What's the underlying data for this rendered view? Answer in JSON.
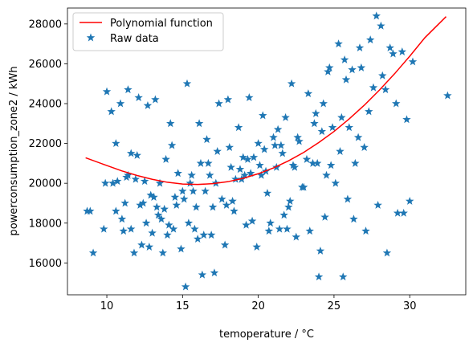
{
  "chart_data": {
    "type": "scatter",
    "xlabel": "temoperature / °C",
    "ylabel": "powerconsumption_zone2 / kWh",
    "xlim": [
      7.4,
      33.7
    ],
    "ylim": [
      14400,
      28800
    ],
    "xticks": [
      10,
      15,
      20,
      25,
      30
    ],
    "yticks": [
      16000,
      18000,
      20000,
      22000,
      24000,
      26000,
      28000
    ],
    "grid": false,
    "legend_position": "top-left",
    "colors": {
      "scatter": "#1f77b4",
      "line": "#ff0000"
    },
    "series": [
      {
        "name": "Polynomial function",
        "kind": "line",
        "x": [
          8.6,
          10,
          11,
          12,
          13,
          14,
          15,
          16,
          17,
          18,
          19,
          20,
          21,
          22,
          23,
          24,
          25,
          26,
          27,
          28,
          29,
          30,
          31,
          32.4
        ],
        "y": [
          21280,
          20890,
          20620,
          20390,
          20200,
          20050,
          19960,
          19940,
          19980,
          20080,
          20250,
          20480,
          20770,
          21130,
          21550,
          22050,
          22600,
          23230,
          23920,
          24680,
          25500,
          26380,
          27310,
          28370
        ]
      },
      {
        "name": "Raw data",
        "kind": "scatter",
        "x": [
          8.7,
          8.9,
          9.1,
          9.8,
          9.9,
          10.0,
          10.3,
          10.6,
          10.6,
          10.7,
          10.9,
          11.1,
          11.2,
          11.4,
          11.4,
          11.6,
          11.6,
          11.8,
          11.9,
          12.1,
          12.2,
          12.3,
          12.5,
          12.7,
          12.9,
          13.0,
          13.2,
          13.3,
          13.5,
          13.7,
          13.9,
          14.1,
          14.2,
          14.5,
          14.9,
          15.2,
          15.3,
          15.4,
          15.6,
          15.8,
          16.1,
          16.3,
          16.5,
          16.7,
          16.9,
          17.1,
          17.4,
          17.6,
          17.8,
          18.0,
          18.2,
          18.4,
          18.7,
          18.9,
          19.2,
          19.4,
          19.7,
          19.9,
          20.1,
          20.3,
          20.6,
          20.8,
          21.0,
          21.2,
          21.4,
          21.6,
          21.8,
          22.1,
          22.3,
          22.5,
          22.7,
          22.9,
          23.2,
          23.4,
          23.7,
          23.9,
          24.1,
          24.3,
          24.5,
          24.7,
          24.9,
          25.1,
          25.3,
          25.5,
          25.7,
          25.9,
          26.2,
          26.4,
          26.6,
          26.8,
          27.0,
          27.3,
          27.6,
          27.8,
          28.1,
          28.4,
          28.7,
          29.1,
          29.5,
          29.8,
          30.2,
          32.5,
          10.4,
          11.3,
          12.0,
          12.6,
          13.1,
          13.8,
          14.4,
          15.0,
          15.5,
          16.0,
          16.6,
          17.2,
          17.9,
          18.5,
          19.0,
          19.5,
          20.0,
          20.5,
          21.1,
          21.7,
          22.4,
          23.0,
          23.6,
          24.2,
          24.8,
          25.4,
          26.0,
          26.7,
          27.4,
          28.2,
          28.9,
          29.6,
          30.0,
          11.0,
          12.4,
          13.6,
          14.7,
          15.7,
          16.8,
          18.1,
          19.3,
          20.4,
          21.5,
          22.6,
          23.8,
          24.6,
          25.8,
          27.1,
          28.5,
          29.2,
          12.8,
          14.0,
          15.1,
          16.2,
          17.3,
          18.3,
          19.1,
          20.2,
          21.3,
          22.2,
          23.3,
          24.4,
          26.3,
          27.9,
          13.4,
          14.6,
          15.9,
          17.0,
          18.8,
          20.7,
          22.0,
          24.0,
          25.6,
          14.3,
          16.4,
          19.6,
          21.9
        ],
        "y": [
          18600,
          18600,
          16500,
          17700,
          20000,
          24600,
          23600,
          18600,
          22000,
          20100,
          24000,
          17600,
          19000,
          24700,
          20400,
          21500,
          17700,
          16500,
          20200,
          24300,
          18900,
          16900,
          20100,
          23900,
          19400,
          17500,
          24200,
          18800,
          20000,
          16500,
          21200,
          17900,
          23000,
          19300,
          16700,
          14800,
          25000,
          18000,
          20400,
          17700,
          23000,
          15400,
          19600,
          21000,
          17400,
          15500,
          24000,
          19200,
          16900,
          24200,
          20800,
          18600,
          22800,
          20200,
          17900,
          24300,
          21300,
          16800,
          20900,
          23400,
          19500,
          18000,
          22300,
          20800,
          17700,
          21500,
          23300,
          19100,
          20900,
          17300,
          22100,
          19800,
          21200,
          17600,
          23000,
          21000,
          16600,
          24000,
          20400,
          25800,
          22800,
          20000,
          27000,
          23300,
          26200,
          19200,
          25700,
          21000,
          22300,
          25800,
          21800,
          23600,
          24800,
          28400,
          27900,
          24700,
          26800,
          24000,
          26600,
          23200,
          26100,
          24400,
          20000,
          20300,
          21400,
          18000,
          19300,
          18700,
          17700,
          19600,
          20000,
          17200,
          22200,
          20000,
          18900,
          20200,
          21300,
          20500,
          22000,
          20600,
          21900,
          18400,
          20800,
          19800,
          21000,
          22600,
          20900,
          21600,
          22800,
          26800,
          27200,
          25400,
          26500,
          18500,
          19100,
          18200,
          19000,
          18200,
          20500,
          19600,
          20400,
          21800,
          21200,
          21700,
          21900,
          22300,
          23500,
          25600,
          25200,
          17600,
          16500,
          18500,
          16800,
          17400,
          19200,
          21000,
          21600,
          19100,
          20400,
          20400,
          22700,
          25000,
          24500,
          18300,
          18200,
          18900,
          18400,
          18900,
          18800,
          18800,
          20700,
          17600,
          18800,
          15300,
          15300,
          21900,
          17400,
          18100,
          17700
        ]
      }
    ]
  }
}
